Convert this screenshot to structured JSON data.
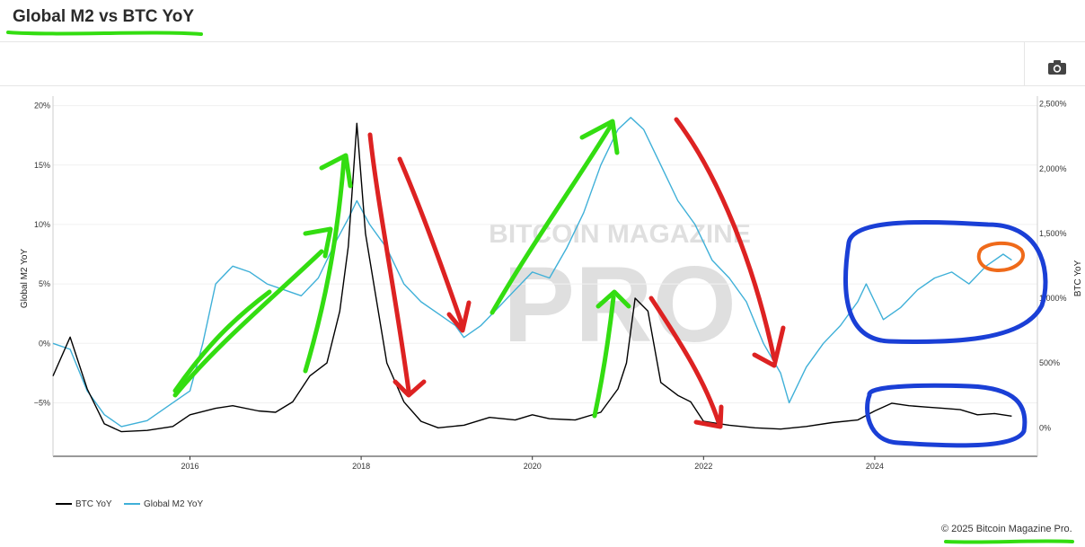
{
  "header": {
    "title": "Global M2 vs BTC YoY"
  },
  "toolbar": {
    "camera_icon": "camera-icon"
  },
  "footer": {
    "copyright": "© 2025 Bitcoin Magazine Pro."
  },
  "watermark": {
    "line1": "BITCOIN MAGAZINE",
    "line2": "PRO"
  },
  "colors": {
    "btc": "#000000",
    "m2": "#3fb0d8",
    "up_arrow": "#33dd11",
    "down_arrow": "#dd2222",
    "circle": "#1a3fd6",
    "highlight": "#ef6a1a"
  },
  "chart_data": {
    "type": "line",
    "x_ticks": [
      "2016",
      "2018",
      "2020",
      "2022",
      "2024"
    ],
    "left_axis": {
      "label": "Global M2 YoY",
      "ticks": [
        "20%",
        "15%",
        "10%",
        "5%",
        "0%",
        "−5%"
      ],
      "range": [
        -9.5,
        20.8
      ]
    },
    "right_axis": {
      "label": "BTC YoY",
      "ticks": [
        "2,500%",
        "2,000%",
        "1,500%",
        "1,000%",
        "500%",
        "0%"
      ],
      "range": [
        -220,
        2560
      ]
    },
    "legend": {
      "placement": "bottom-left"
    },
    "series": [
      {
        "name": "BTC YoY",
        "axis": "right",
        "x": [
          2014.4,
          2014.6,
          2014.8,
          2015.0,
          2015.2,
          2015.5,
          2015.8,
          2016.0,
          2016.3,
          2016.5,
          2016.8,
          2017.0,
          2017.2,
          2017.4,
          2017.6,
          2017.75,
          2017.85,
          2017.95,
          2018.05,
          2018.15,
          2018.3,
          2018.5,
          2018.7,
          2018.9,
          2019.2,
          2019.5,
          2019.8,
          2020.0,
          2020.2,
          2020.5,
          2020.8,
          2021.0,
          2021.1,
          2021.2,
          2021.35,
          2021.5,
          2021.7,
          2021.85,
          2022.0,
          2022.3,
          2022.6,
          2022.9,
          2023.2,
          2023.5,
          2023.8,
          2024.0,
          2024.2,
          2024.4,
          2024.6,
          2024.8,
          2025.0,
          2025.2,
          2025.4,
          2025.6
        ],
        "y": [
          400,
          700,
          300,
          30,
          -30,
          -20,
          10,
          100,
          150,
          170,
          130,
          120,
          200,
          400,
          500,
          900,
          1400,
          2350,
          1500,
          1100,
          500,
          200,
          50,
          0,
          20,
          80,
          60,
          100,
          70,
          60,
          120,
          300,
          500,
          1000,
          900,
          350,
          250,
          200,
          50,
          20,
          0,
          -10,
          10,
          40,
          60,
          130,
          190,
          170,
          160,
          150,
          140,
          100,
          110,
          90
        ]
      },
      {
        "name": "Global M2 YoY",
        "axis": "left",
        "x": [
          2014.4,
          2014.6,
          2014.8,
          2015.0,
          2015.2,
          2015.5,
          2015.8,
          2016.0,
          2016.15,
          2016.3,
          2016.5,
          2016.7,
          2016.9,
          2017.1,
          2017.3,
          2017.5,
          2017.7,
          2017.85,
          2017.95,
          2018.1,
          2018.3,
          2018.5,
          2018.7,
          2018.9,
          2019.1,
          2019.2,
          2019.4,
          2019.6,
          2019.8,
          2020.0,
          2020.2,
          2020.4,
          2020.6,
          2020.8,
          2021.0,
          2021.15,
          2021.3,
          2021.5,
          2021.7,
          2021.9,
          2022.1,
          2022.3,
          2022.5,
          2022.7,
          2022.9,
          2023.0,
          2023.2,
          2023.4,
          2023.6,
          2023.8,
          2023.9,
          2024.1,
          2024.3,
          2024.5,
          2024.7,
          2024.9,
          2025.1,
          2025.3,
          2025.5,
          2025.6
        ],
        "y": [
          0.0,
          -0.5,
          -4.0,
          -6.0,
          -7.0,
          -6.5,
          -5.0,
          -4.0,
          0.0,
          5.0,
          6.5,
          6.0,
          5.0,
          4.5,
          4.0,
          5.5,
          8.5,
          10.5,
          12.0,
          10.0,
          8.0,
          5.0,
          3.5,
          2.5,
          1.5,
          0.5,
          1.5,
          3.0,
          4.5,
          6.0,
          5.5,
          8.0,
          11.0,
          15.0,
          18.0,
          19.0,
          18.0,
          15.0,
          12.0,
          10.0,
          7.0,
          5.5,
          3.5,
          0.0,
          -2.5,
          -5.0,
          -2.0,
          0.0,
          1.5,
          3.5,
          5.0,
          2.0,
          3.0,
          4.5,
          5.5,
          6.0,
          5.0,
          6.5,
          7.5,
          7.0
        ]
      }
    ]
  }
}
